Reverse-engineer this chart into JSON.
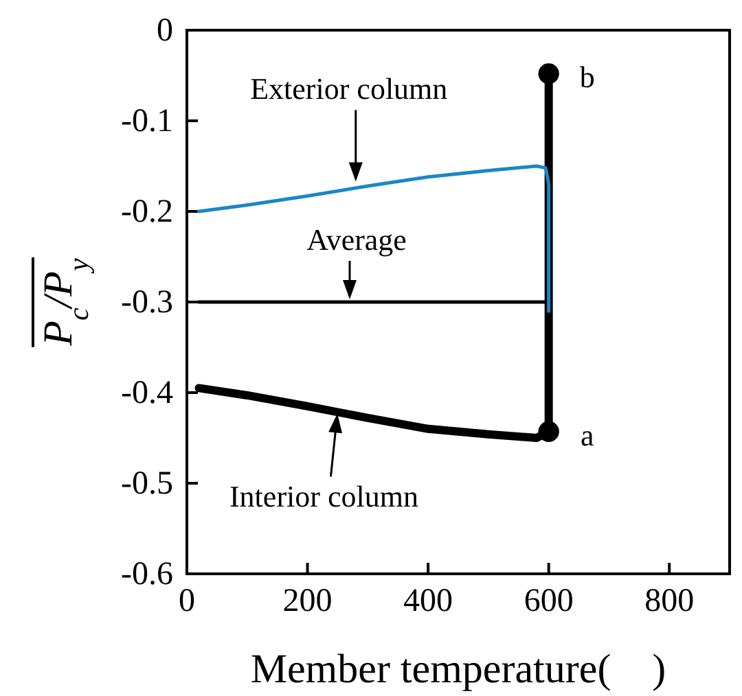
{
  "chart_data": {
    "type": "line",
    "xlabel": "Member temperature(    )",
    "ylabel": "P$_{c}$/P$_{y}$",
    "xlim": [
      0,
      900
    ],
    "xticks": [
      0,
      200,
      400,
      600,
      800
    ],
    "ylim": [
      -0.6,
      0
    ],
    "yticks": [
      -0.6,
      -0.5,
      -0.4,
      -0.3,
      -0.2,
      -0.1,
      0
    ],
    "grid": false,
    "marker": "none",
    "line_style": "solid",
    "series": [
      {
        "color": "#000000",
        "x": [
          20,
          100,
          200,
          300,
          400,
          500,
          580,
          600,
          600
        ],
        "values": [
          -0.395,
          -0.403,
          -0.415,
          -0.428,
          -0.44,
          -0.446,
          -0.45,
          -0.443,
          -0.048
        ]
      },
      {
        "color": "#000000",
        "x": [
          20,
          600
        ],
        "values": [
          -0.3,
          -0.3
        ]
      },
      {
        "color": "#1a86c8",
        "x": [
          20,
          100,
          200,
          300,
          400,
          500,
          580,
          595,
          600,
          600
        ],
        "values": [
          -0.2,
          -0.193,
          -0.183,
          -0.172,
          -0.162,
          -0.155,
          -0.15,
          -0.152,
          -0.17,
          -0.31
        ]
      },
      {
        "type": "scatter",
        "marker": "circle",
        "color": "#000000",
        "x": [
          600,
          600
        ],
        "values": [
          -0.443,
          -0.048
        ]
      }
    ],
    "annotations": [
      {
        "text": "Exterior column",
        "x": 280,
        "y": -0.17
      },
      {
        "text": "Average",
        "x": 270,
        "y": -0.3
      },
      {
        "text": "Interior column",
        "x": 250,
        "y": -0.42
      },
      {
        "text": "a",
        "x": 600,
        "y": -0.443
      },
      {
        "text": "b",
        "x": 600,
        "y": -0.048
      }
    ]
  }
}
